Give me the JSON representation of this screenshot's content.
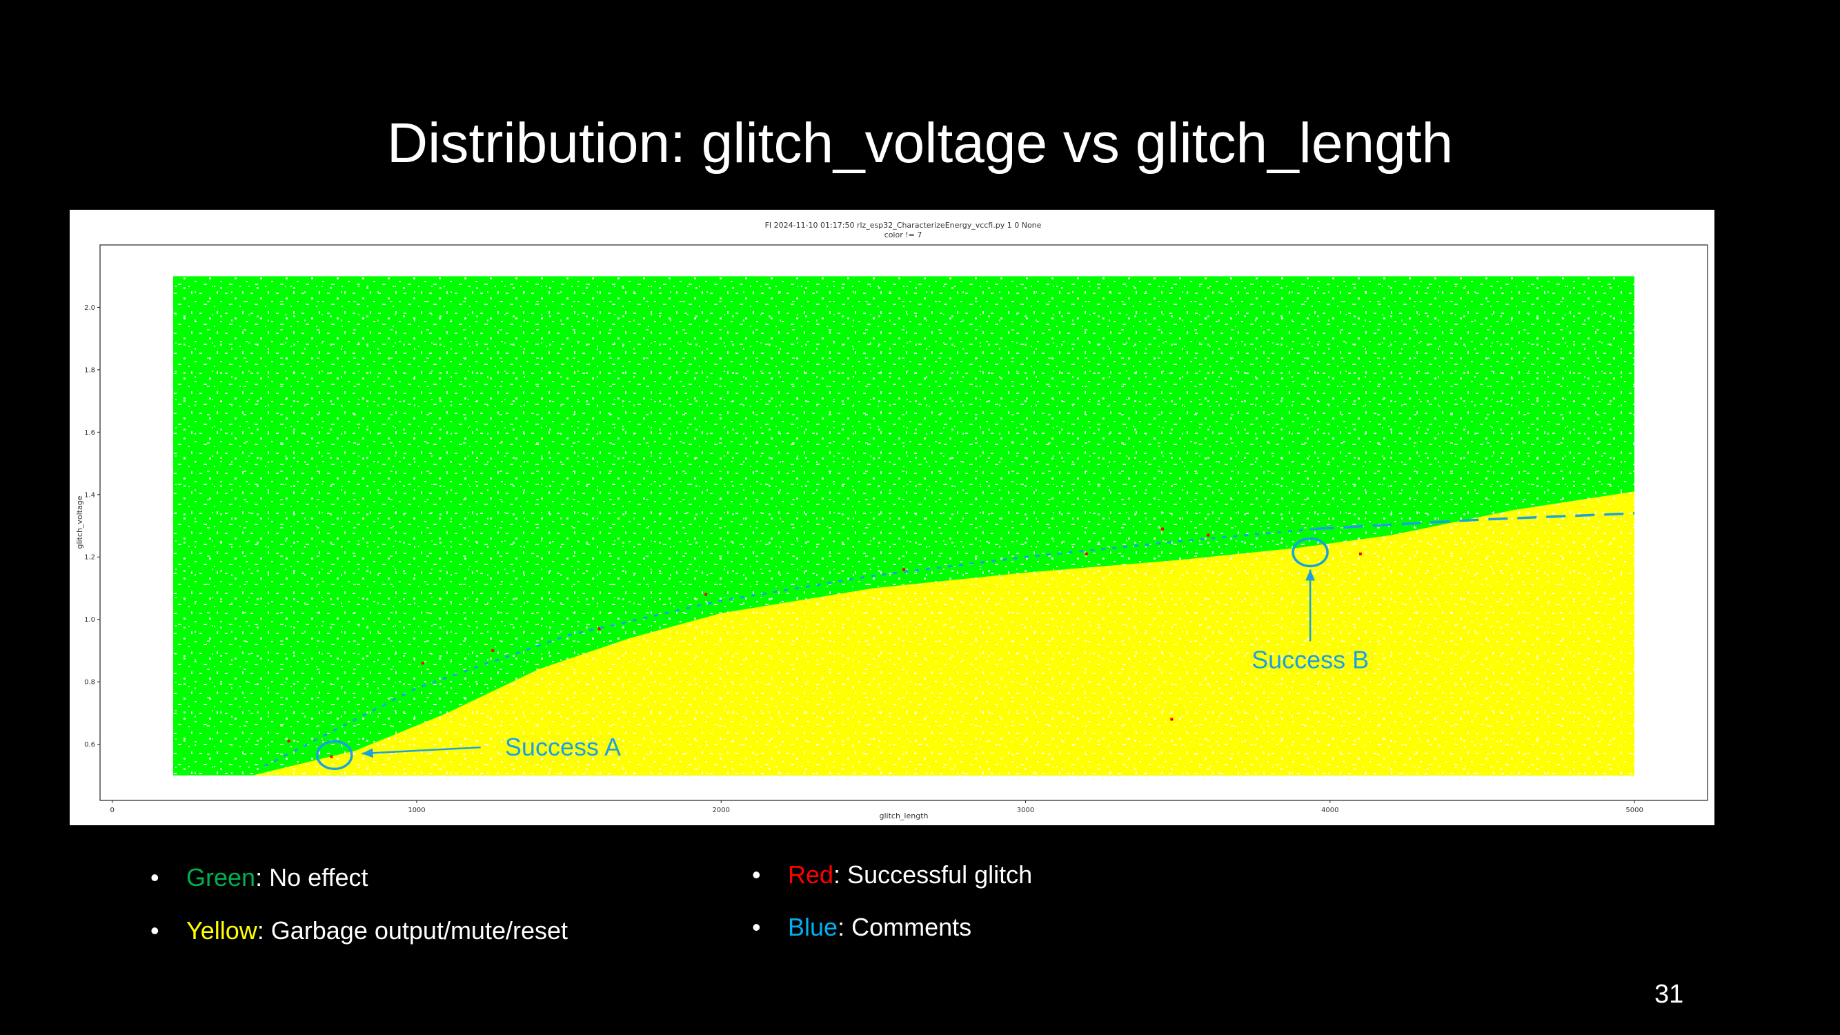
{
  "slide": {
    "title": "Distribution: glitch_voltage vs glitch_length",
    "page_number": "31"
  },
  "legend_bullets": [
    {
      "term": "Green",
      "term_color": "#00b050",
      "desc": ": No effect"
    },
    {
      "term": "Yellow",
      "term_color": "#ffff00",
      "desc": ": Garbage output/mute/reset"
    },
    {
      "term": "Red",
      "term_color": "#ff0000",
      "desc": ": Successful glitch"
    },
    {
      "term": "Blue",
      "term_color": "#00b0f0",
      "desc": ": Comments"
    }
  ],
  "chart_data": {
    "type": "scatter",
    "title": "FI 2024-11-10 01:17:50 rlz_esp32_CharacterizeEnergy_vccfi.py 1 0 None",
    "subtitle": "color != 7",
    "xlabel": "glitch_length",
    "ylabel": "glitch_voltage",
    "xlim": [
      -40,
      5240
    ],
    "ylim": [
      0.42,
      2.2
    ],
    "xticks": [
      0,
      1000,
      2000,
      3000,
      4000,
      5000
    ],
    "yticks": [
      0.6,
      0.8,
      1.0,
      1.2,
      1.4,
      1.6,
      1.8,
      2.0
    ],
    "ytick_labels": [
      "0.6",
      "0.8",
      "1.0",
      "1.2",
      "1.4",
      "1.6",
      "1.8",
      "2.0"
    ],
    "data_extent": {
      "x": [
        200,
        5000
      ],
      "y": [
        0.5,
        2.1
      ]
    },
    "colors": {
      "no_effect": "#00ff00",
      "garbage": "#ffff00",
      "success": "#ff0000",
      "comments": "#1ba1e2"
    },
    "boundary_no_effect_vs_garbage": [
      {
        "x": 460,
        "y": 0.5
      },
      {
        "x": 800,
        "y": 0.58
      },
      {
        "x": 1100,
        "y": 0.7
      },
      {
        "x": 1400,
        "y": 0.84
      },
      {
        "x": 1700,
        "y": 0.94
      },
      {
        "x": 2000,
        "y": 1.02
      },
      {
        "x": 2500,
        "y": 1.1
      },
      {
        "x": 3000,
        "y": 1.15
      },
      {
        "x": 3500,
        "y": 1.19
      },
      {
        "x": 3900,
        "y": 1.23
      },
      {
        "x": 4200,
        "y": 1.27
      },
      {
        "x": 4600,
        "y": 1.35
      },
      {
        "x": 5000,
        "y": 1.41
      }
    ],
    "comment_curve": [
      {
        "x": 500,
        "y": 0.53
      },
      {
        "x": 700,
        "y": 0.63
      },
      {
        "x": 1000,
        "y": 0.78
      },
      {
        "x": 1500,
        "y": 0.95
      },
      {
        "x": 2000,
        "y": 1.06
      },
      {
        "x": 2500,
        "y": 1.14
      },
      {
        "x": 3000,
        "y": 1.2
      },
      {
        "x": 3500,
        "y": 1.25
      },
      {
        "x": 3950,
        "y": 1.29
      },
      {
        "x": 4500,
        "y": 1.32
      },
      {
        "x": 5000,
        "y": 1.34
      }
    ],
    "comment_curve_dashed_from_x": 3950,
    "success_points": [
      {
        "x": 720,
        "y": 0.56
      },
      {
        "x": 580,
        "y": 0.61
      },
      {
        "x": 1020,
        "y": 0.86
      },
      {
        "x": 1600,
        "y": 0.97
      },
      {
        "x": 1950,
        "y": 1.08
      },
      {
        "x": 3200,
        "y": 1.21
      },
      {
        "x": 3450,
        "y": 1.29
      },
      {
        "x": 3600,
        "y": 1.27
      },
      {
        "x": 3480,
        "y": 0.68
      },
      {
        "x": 4100,
        "y": 1.21
      },
      {
        "x": 2600,
        "y": 1.16
      },
      {
        "x": 1250,
        "y": 0.9
      }
    ],
    "annotations": [
      {
        "text": "Success A",
        "circle": {
          "x": 730,
          "y": 0.565
        },
        "label_at": {
          "x": 1290,
          "y": 0.59
        },
        "arrow_from": {
          "x": 1210,
          "y": 0.59
        },
        "arrow_to": {
          "x": 820,
          "y": 0.57
        }
      },
      {
        "text": "Success B",
        "circle": {
          "x": 3935,
          "y": 1.215
        },
        "label_at": {
          "x": 3935,
          "y": 0.87
        },
        "arrow_from": {
          "x": 3935,
          "y": 0.93
        },
        "arrow_to": {
          "x": 3935,
          "y": 1.16
        }
      }
    ]
  }
}
